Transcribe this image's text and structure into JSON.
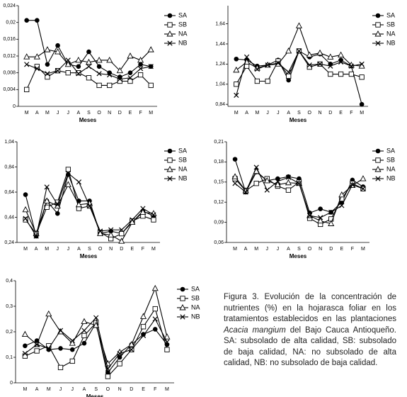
{
  "chart_data": [
    {
      "type": "line",
      "xlabel": "Meses",
      "categories": [
        "M",
        "A",
        "M",
        "J",
        "J",
        "A",
        "S",
        "O",
        "N",
        "D",
        "E",
        "F",
        "M"
      ],
      "ylim": [
        0,
        0.024
      ],
      "yticks": [
        0,
        {
          "value": 0.004,
          "label": "0,004"
        },
        {
          "value": 0.008,
          "label": "0,008"
        },
        {
          "value": 0.012,
          "label": "0,012"
        },
        {
          "value": 0.016,
          "label": "0,016"
        },
        {
          "value": 0.02,
          "label": "0,02"
        },
        {
          "value": 0.024,
          "label": "0,024"
        }
      ],
      "series": [
        {
          "name": "SA",
          "color": "#000000",
          "marker": "circle",
          "values": [
            0.0205,
            0.0205,
            0.01,
            0.0145,
            0.01,
            0.0095,
            0.013,
            0.0095,
            0.008,
            0.007,
            0.008,
            0.01,
            0.0095
          ]
        },
        {
          "name": "SB",
          "color": "#000000",
          "marker": "square",
          "values": [
            0.004,
            0.0095,
            0.007,
            0.0085,
            0.008,
            0.008,
            0.0068,
            0.005,
            0.005,
            0.006,
            0.006,
            0.0075,
            0.005
          ]
        },
        {
          "name": "NA",
          "color": "#000000",
          "marker": "triangle",
          "values": [
            0.0118,
            0.0118,
            0.0135,
            0.013,
            0.01,
            0.011,
            0.0105,
            0.011,
            0.011,
            0.0085,
            0.012,
            0.011,
            0.0135
          ]
        },
        {
          "name": "NB",
          "color": "#000000",
          "marker": "x",
          "values": [
            0.01,
            0.009,
            0.0078,
            0.0085,
            0.011,
            0.0078,
            0.0095,
            0.0078,
            0.0075,
            0.0065,
            0.0068,
            0.009,
            0.0095
          ]
        }
      ]
    },
    {
      "type": "line",
      "xlabel": "Meses",
      "categories": [
        "M",
        "A",
        "M",
        "J",
        "J",
        "A",
        "S",
        "O",
        "N",
        "D",
        "E",
        "F",
        "M"
      ],
      "ylim": [
        0.82,
        1.82
      ],
      "yticks": [
        {
          "value": 0.84,
          "label": "0,84"
        },
        {
          "value": 1.04,
          "label": "1,04"
        },
        {
          "value": 1.24,
          "label": "1,24"
        },
        {
          "value": 1.44,
          "label": "1,44"
        },
        {
          "value": 1.64,
          "label": "1,64"
        }
      ],
      "series": [
        {
          "name": "SA",
          "color": "#000000",
          "marker": "circle",
          "values": [
            1.29,
            1.28,
            1.22,
            1.23,
            1.28,
            1.08,
            1.37,
            1.31,
            1.34,
            1.24,
            1.28,
            1.22,
            0.84
          ]
        },
        {
          "name": "SB",
          "color": "#000000",
          "marker": "square",
          "values": [
            1.04,
            1.22,
            1.07,
            1.07,
            1.27,
            1.12,
            1.37,
            1.21,
            1.24,
            1.14,
            1.14,
            1.14,
            1.11
          ]
        },
        {
          "name": "NA",
          "color": "#000000",
          "marker": "triangle",
          "values": [
            1.18,
            1.26,
            1.2,
            1.23,
            1.24,
            1.37,
            1.62,
            1.33,
            1.35,
            1.31,
            1.33,
            1.23,
            1.22
          ]
        },
        {
          "name": "NB",
          "color": "#000000",
          "marker": "x",
          "values": [
            0.93,
            1.31,
            1.19,
            1.23,
            1.25,
            1.16,
            1.37,
            1.23,
            1.24,
            1.22,
            1.26,
            1.22,
            1.24
          ]
        }
      ]
    },
    {
      "type": "line",
      "xlabel": "Meses",
      "categories": [
        "M",
        "A",
        "M",
        "J",
        "J",
        "A",
        "S",
        "O",
        "N",
        "D",
        "E",
        "F",
        "M"
      ],
      "ylim": [
        0.24,
        1.04
      ],
      "yticks": [
        {
          "value": 0.24,
          "label": "0,24"
        },
        {
          "value": 0.44,
          "label": "0,44"
        },
        {
          "value": 0.64,
          "label": "0,64"
        },
        {
          "value": 0.84,
          "label": "0,84"
        },
        {
          "value": 1.04,
          "label": "1,04"
        }
      ],
      "series": [
        {
          "name": "SA",
          "color": "#000000",
          "marker": "circle",
          "values": [
            0.62,
            0.29,
            0.57,
            0.47,
            0.78,
            0.57,
            0.57,
            0.31,
            0.33,
            0.31,
            0.4,
            0.49,
            0.45
          ]
        },
        {
          "name": "SB",
          "color": "#000000",
          "marker": "square",
          "values": [
            0.42,
            0.31,
            0.52,
            0.56,
            0.82,
            0.51,
            0.53,
            0.32,
            0.27,
            0.31,
            0.41,
            0.45,
            0.42
          ]
        },
        {
          "name": "NA",
          "color": "#000000",
          "marker": "triangle",
          "values": [
            0.5,
            0.31,
            0.57,
            0.53,
            0.7,
            0.54,
            0.55,
            0.31,
            0.3,
            0.25,
            0.4,
            0.48,
            0.47
          ]
        },
        {
          "name": "NB",
          "color": "#000000",
          "marker": "x",
          "values": [
            0.43,
            0.29,
            0.68,
            0.54,
            0.79,
            0.72,
            0.53,
            0.33,
            0.34,
            0.34,
            0.42,
            0.51,
            0.46
          ]
        }
      ]
    },
    {
      "type": "line",
      "xlabel": "Meses",
      "categories": [
        "M",
        "A",
        "M",
        "J",
        "J",
        "A",
        "S",
        "O",
        "N",
        "D",
        "E",
        "F",
        "M"
      ],
      "ylim": [
        0.06,
        0.21
      ],
      "yticks": [
        {
          "value": 0.06,
          "label": "0,06"
        },
        {
          "value": 0.09,
          "label": "0,09"
        },
        {
          "value": 0.12,
          "label": "0,12"
        },
        {
          "value": 0.15,
          "label": "0,15"
        },
        {
          "value": 0.18,
          "label": "0,18"
        },
        {
          "value": 0.21,
          "label": "0,21"
        }
      ],
      "series": [
        {
          "name": "SA",
          "color": "#000000",
          "marker": "circle",
          "values": [
            0.184,
            0.135,
            0.165,
            0.152,
            0.155,
            0.158,
            0.155,
            0.104,
            0.11,
            0.105,
            0.12,
            0.153,
            0.143
          ]
        },
        {
          "name": "SB",
          "color": "#000000",
          "marker": "square",
          "values": [
            0.155,
            0.137,
            0.148,
            0.155,
            0.144,
            0.138,
            0.15,
            0.096,
            0.087,
            0.095,
            0.125,
            0.148,
            0.14
          ]
        },
        {
          "name": "NA",
          "color": "#000000",
          "marker": "triangle",
          "values": [
            0.158,
            0.137,
            0.166,
            0.152,
            0.146,
            0.149,
            0.148,
            0.1,
            0.092,
            0.088,
            0.131,
            0.145,
            0.155
          ]
        },
        {
          "name": "NB",
          "color": "#000000",
          "marker": "x",
          "values": [
            0.148,
            0.135,
            0.172,
            0.138,
            0.151,
            0.157,
            0.148,
            0.1,
            0.097,
            0.105,
            0.115,
            0.146,
            0.14
          ]
        }
      ]
    },
    {
      "type": "line",
      "xlabel": "Meses",
      "categories": [
        "M",
        "A",
        "M",
        "J",
        "J",
        "A",
        "S",
        "O",
        "N",
        "D",
        "E",
        "F",
        "M"
      ],
      "ylim": [
        0,
        0.4
      ],
      "yticks": [
        0,
        {
          "value": 0.1,
          "label": "0,1"
        },
        {
          "value": 0.2,
          "label": "0,2"
        },
        {
          "value": 0.3,
          "label": "0,3"
        },
        {
          "value": 0.4,
          "label": "0,4"
        }
      ],
      "series": [
        {
          "name": "SA",
          "color": "#000000",
          "marker": "circle",
          "values": [
            0.145,
            0.165,
            0.13,
            0.135,
            0.13,
            0.155,
            0.235,
            0.04,
            0.1,
            0.15,
            0.19,
            0.21,
            0.15
          ]
        },
        {
          "name": "SB",
          "color": "#000000",
          "marker": "square",
          "values": [
            0.105,
            0.125,
            0.145,
            0.06,
            0.085,
            0.185,
            0.235,
            0.025,
            0.075,
            0.13,
            0.22,
            0.29,
            0.13
          ]
        },
        {
          "name": "NA",
          "color": "#000000",
          "marker": "triangle",
          "values": [
            0.19,
            0.15,
            0.27,
            0.2,
            0.155,
            0.24,
            0.225,
            0.075,
            0.12,
            0.15,
            0.26,
            0.37,
            0.18
          ]
        },
        {
          "name": "NB",
          "color": "#000000",
          "marker": "x",
          "values": [
            0.115,
            0.15,
            0.135,
            0.205,
            0.165,
            0.205,
            0.255,
            0.055,
            0.115,
            0.13,
            0.185,
            0.25,
            0.16
          ]
        }
      ]
    }
  ],
  "caption": {
    "before": "Figura 3. Evolución de la concentración de nutrientes (%) en la hojarasca foliar en los tratamientos establecidos en las plantaciones",
    "italic": "Acacia mangium",
    "after": "del Bajo Cauca Antioqueño. SA: subsolado de alta calidad, SB: subsolado de baja calidad, NA: no subsolado de alta calidad, NB: no subsolado de baja calidad."
  }
}
